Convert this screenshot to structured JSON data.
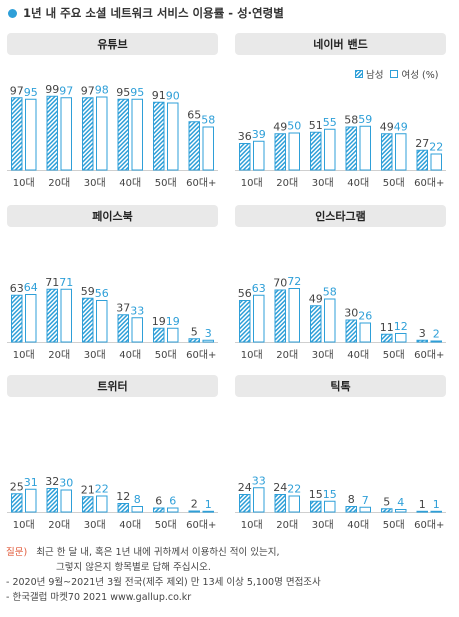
{
  "title": "1년 내 주요 소셜 네트워크 서비스 이용률 - 성·연령별",
  "colors": {
    "bar": "#2e9fd8",
    "header_bg": "#e9e9e9",
    "title_dot": "#2e9fd8",
    "question_label": "#e05a3a"
  },
  "legend": {
    "male": "남성",
    "female": "여성 (%)",
    "position": "top-right of 네이버 밴드 panel"
  },
  "chart_data": [
    {
      "type": "bar",
      "title": "유튜브",
      "categories": [
        "10대",
        "20대",
        "30대",
        "40대",
        "50대",
        "60대+"
      ],
      "series": [
        {
          "name": "남성",
          "values": [
            97,
            99,
            97,
            95,
            91,
            65
          ]
        },
        {
          "name": "여성",
          "values": [
            95,
            97,
            98,
            95,
            90,
            58
          ]
        }
      ]
    },
    {
      "type": "bar",
      "title": "네이버 밴드",
      "categories": [
        "10대",
        "20대",
        "30대",
        "40대",
        "50대",
        "60대+"
      ],
      "series": [
        {
          "name": "남성",
          "values": [
            36,
            49,
            51,
            58,
            49,
            27
          ]
        },
        {
          "name": "여성",
          "values": [
            39,
            50,
            55,
            59,
            49,
            22
          ]
        }
      ]
    },
    {
      "type": "bar",
      "title": "페이스북",
      "categories": [
        "10대",
        "20대",
        "30대",
        "40대",
        "50대",
        "60대+"
      ],
      "series": [
        {
          "name": "남성",
          "values": [
            63,
            71,
            59,
            37,
            19,
            5
          ]
        },
        {
          "name": "여성",
          "values": [
            64,
            71,
            56,
            33,
            19,
            3
          ]
        }
      ]
    },
    {
      "type": "bar",
      "title": "인스타그램",
      "categories": [
        "10대",
        "20대",
        "30대",
        "40대",
        "50대",
        "60대+"
      ],
      "series": [
        {
          "name": "남성",
          "values": [
            56,
            70,
            49,
            30,
            11,
            3
          ]
        },
        {
          "name": "여성",
          "values": [
            63,
            72,
            58,
            26,
            12,
            2
          ]
        }
      ]
    },
    {
      "type": "bar",
      "title": "트위터",
      "categories": [
        "10대",
        "20대",
        "30대",
        "40대",
        "50대",
        "60대+"
      ],
      "series": [
        {
          "name": "남성",
          "values": [
            25,
            32,
            21,
            12,
            6,
            2
          ]
        },
        {
          "name": "여성",
          "values": [
            31,
            30,
            22,
            8,
            6,
            1
          ]
        }
      ]
    },
    {
      "type": "bar",
      "title": "틱톡",
      "categories": [
        "10대",
        "20대",
        "30대",
        "40대",
        "50대",
        "60대+"
      ],
      "series": [
        {
          "name": "남성",
          "values": [
            24,
            24,
            15,
            8,
            5,
            1
          ]
        },
        {
          "name": "여성",
          "values": [
            33,
            22,
            15,
            7,
            4,
            1
          ]
        }
      ]
    }
  ],
  "notes": {
    "question_label": "질문)",
    "question_line1": "최근 한 달 내, 혹은 1년 내에 귀하께서 이용하신 적이 있는지,",
    "question_line2": "그렇지 않은지 항목별로 답해 주십시오.",
    "survey": "- 2020년 9월~2021년 3월 전국(제주 제외) 만 13세 이상 5,100명 면접조사",
    "source": "- 한국갤럽 마켓70 2021 www.gallup.co.kr"
  }
}
